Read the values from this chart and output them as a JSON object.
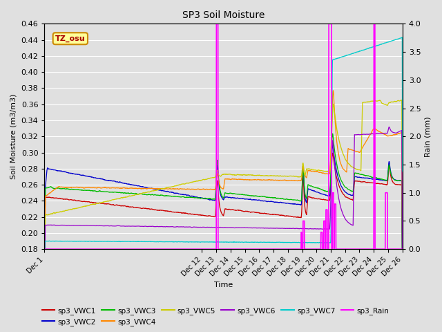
{
  "title": "SP3 Soil Moisture",
  "xlabel": "Time",
  "ylabel_left": "Soil Moisture (m3/m3)",
  "ylabel_right": "Rain (mm)",
  "ylim_left": [
    0.18,
    0.46
  ],
  "ylim_right": [
    0.0,
    4.0
  ],
  "xlim": [
    1,
    26
  ],
  "xtick_labels": [
    "Dec 1",
    "Dec 12",
    "Dec 13",
    "Dec 14",
    "Dec 15",
    "Dec 16",
    "Dec 17",
    "Dec 18",
    "Dec 19",
    "Dec 20",
    "Dec 21",
    "Dec 22",
    "Dec 23",
    "Dec 24",
    "Dec 25",
    "Dec 26"
  ],
  "xtick_positions": [
    1,
    12,
    13,
    14,
    15,
    16,
    17,
    18,
    19,
    20,
    21,
    22,
    23,
    24,
    25,
    26
  ],
  "bg_color": "#e0e0e0",
  "annotation_text": "TZ_osu",
  "annotation_color": "#aa0000",
  "annotation_bg": "#ffff99",
  "annotation_border": "#cc8800",
  "colors": {
    "sp3_VWC1": "#cc0000",
    "sp3_VWC2": "#0000cc",
    "sp3_VWC3": "#00bb00",
    "sp3_VWC4": "#ff8800",
    "sp3_VWC5": "#cccc00",
    "sp3_VWC6": "#9900cc",
    "sp3_VWC7": "#00cccc",
    "sp3_Rain": "#ff00ff"
  }
}
